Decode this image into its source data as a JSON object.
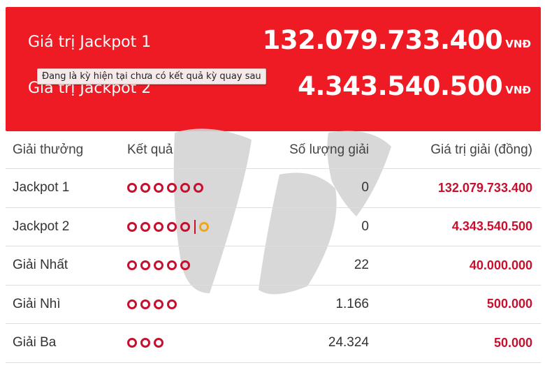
{
  "jackpot": {
    "rows": [
      {
        "label": "Giá trị Jackpot 1",
        "amount": "132.079.733.400",
        "unit": "VNĐ"
      },
      {
        "label": "Giá trị Jackpot 2",
        "amount": "4.343.540.500",
        "unit": "VNĐ"
      }
    ],
    "tooltip": "Đang là kỳ hiện tại chưa có kết quả kỳ quay sau",
    "bg_color": "#ee1b24"
  },
  "table": {
    "headers": {
      "prize": "Giải thưởng",
      "result": "Kết quả",
      "count": "Số lượng giải",
      "value": "Giá trị giải (đồng)"
    },
    "rows": [
      {
        "prize": "Jackpot 1",
        "balls": 6,
        "special_balls": 0,
        "count": "0",
        "value": "132.079.733.400"
      },
      {
        "prize": "Jackpot 2",
        "balls": 5,
        "special_balls": 1,
        "count": "0",
        "value": "4.343.540.500"
      },
      {
        "prize": "Giải Nhất",
        "balls": 5,
        "special_balls": 0,
        "count": "22",
        "value": "40.000.000"
      },
      {
        "prize": "Giải Nhì",
        "balls": 4,
        "special_balls": 0,
        "count": "1.166",
        "value": "500.000"
      },
      {
        "prize": "Giải Ba",
        "balls": 3,
        "special_balls": 0,
        "count": "24.324",
        "value": "50.000"
      }
    ],
    "ball_color": "#c8102e",
    "special_ball_color": "#f2a51a"
  }
}
